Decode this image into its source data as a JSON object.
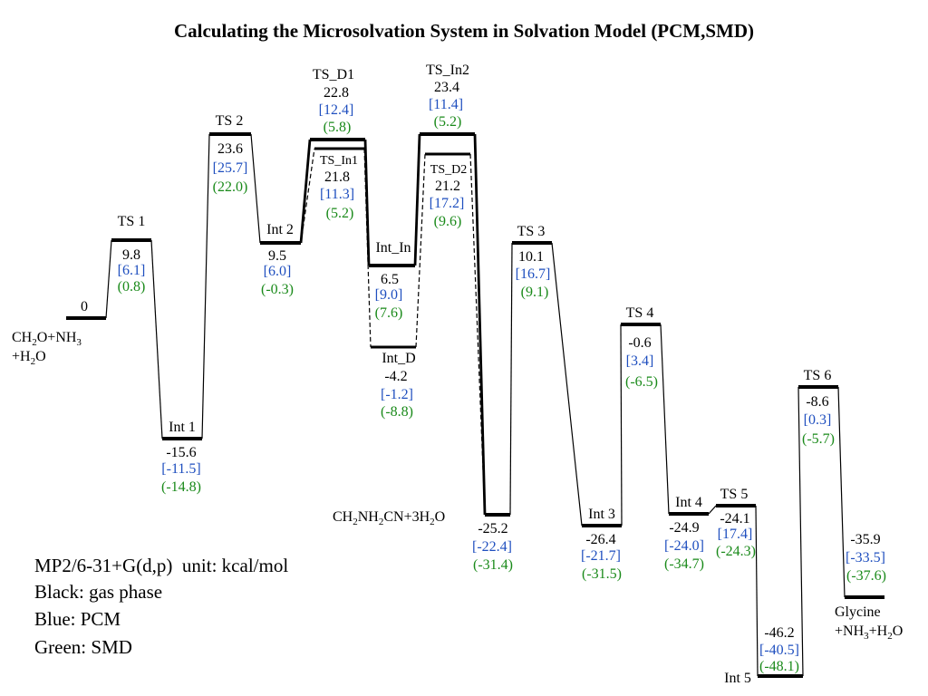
{
  "chart_data": {
    "type": "energy-profile",
    "title": "Calculating the Microsolvation System in Solvation Model (PCM,SMD)",
    "unit": "kcal/mol",
    "series": [
      {
        "name": "gas phase",
        "color": "#000000"
      },
      {
        "name": "PCM",
        "color": "#1f4fbf"
      },
      {
        "name": "SMD",
        "color": "#1a8a1a"
      }
    ],
    "states": [
      {
        "id": "R",
        "label": "",
        "gas": "0",
        "pcm": "",
        "smd": ""
      },
      {
        "id": "TS1",
        "label": "TS 1",
        "gas": "9.8",
        "pcm": "[6.1]",
        "smd": "(0.8)"
      },
      {
        "id": "Int1",
        "label": "Int 1",
        "gas": "-15.6",
        "pcm": "[-11.5]",
        "smd": "(-14.8)"
      },
      {
        "id": "TS2",
        "label": "TS 2",
        "gas": "23.6",
        "pcm": "[25.7]",
        "smd": "(22.0)"
      },
      {
        "id": "Int2",
        "label": "Int 2",
        "gas": "9.5",
        "pcm": "[6.0]",
        "smd": "(-0.3)"
      },
      {
        "id": "TS_D1",
        "label": "TS_D1",
        "gas": "22.8",
        "pcm": "[12.4]",
        "smd": "(5.8)"
      },
      {
        "id": "TS_In1",
        "label": "TS_In1",
        "gas": "21.8",
        "pcm": "[11.3]",
        "smd": "(5.2)"
      },
      {
        "id": "Int_In",
        "label": "Int_In",
        "gas": "6.5",
        "pcm": "[9.0]",
        "smd": "(7.6)"
      },
      {
        "id": "Int_D",
        "label": "Int_D",
        "gas": "-4.2",
        "pcm": "[-1.2]",
        "smd": "(-8.8)"
      },
      {
        "id": "TS_In2",
        "label": "TS_In2",
        "gas": "23.4",
        "pcm": "[11.4]",
        "smd": "(5.2)"
      },
      {
        "id": "TS_D2",
        "label": "TS_D2",
        "gas": "21.2",
        "pcm": "[17.2]",
        "smd": "(9.6)"
      },
      {
        "id": "P1",
        "label": "",
        "gas": "-25.2",
        "pcm": "[-22.4]",
        "smd": "(-31.4)"
      },
      {
        "id": "TS3",
        "label": "TS 3",
        "gas": "10.1",
        "pcm": "[16.7]",
        "smd": "(9.1)"
      },
      {
        "id": "Int3",
        "label": "Int 3",
        "gas": "-26.4",
        "pcm": "[-21.7]",
        "smd": "(-31.5)"
      },
      {
        "id": "TS4",
        "label": "TS 4",
        "gas": "-0.6",
        "pcm": "[3.4]",
        "smd": "(-6.5)"
      },
      {
        "id": "Int4",
        "label": "Int 4",
        "gas": "-24.9",
        "pcm": "[-24.0]",
        "smd": "(-34.7)"
      },
      {
        "id": "TS5",
        "label": "TS 5",
        "gas": "-24.1",
        "pcm": "[17.4]",
        "smd": "(-24.3)"
      },
      {
        "id": "Int5",
        "label": "Int 5",
        "gas": "-46.2",
        "pcm": "[-40.5]",
        "smd": "(-48.1)"
      },
      {
        "id": "TS6",
        "label": "TS 6",
        "gas": "-8.6",
        "pcm": "[0.3]",
        "smd": "(-5.7)"
      },
      {
        "id": "P2",
        "label": "",
        "gas": "-35.9",
        "pcm": "[-33.5]",
        "smd": "(-37.6)"
      }
    ],
    "species": {
      "reactant_line1": "CH",
      "reactant_sub1": "2",
      "reactant_mid": "O+NH",
      "reactant_sub2": "3",
      "reactant_line2": "+H",
      "reactant_sub3": "2",
      "reactant_end": "O",
      "aminonitrile_a": "CH",
      "aminonitrile_sub1": "2",
      "aminonitrile_b": "NH",
      "aminonitrile_sub2": "2",
      "aminonitrile_c": "CN+3H",
      "aminonitrile_sub3": "2",
      "aminonitrile_d": "O",
      "product_line1": "Glycine",
      "product_line2a": "+NH",
      "product_sub1": "3",
      "product_line2b": "+H",
      "product_sub2": "2",
      "product_line2c": "O"
    },
    "legend_lines": [
      "MP2/6-31+G(d,p)  unit: kcal/mol",
      "Black: gas phase",
      "Blue: PCM",
      "Green: SMD"
    ]
  }
}
